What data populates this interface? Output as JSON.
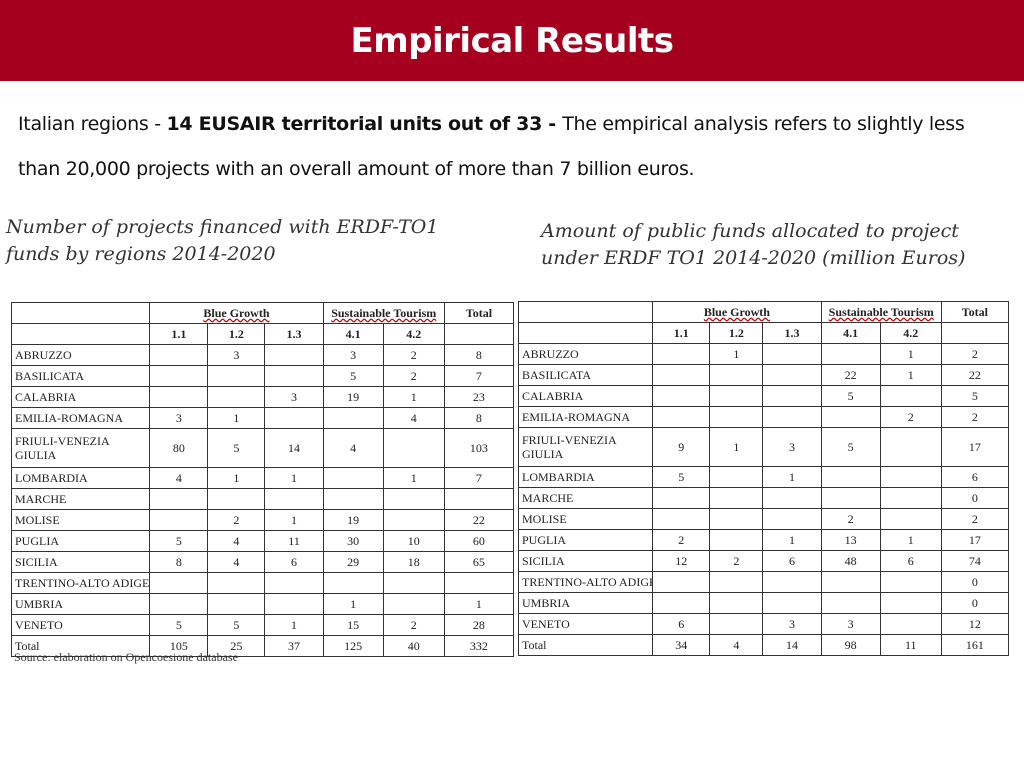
{
  "header": {
    "title": "Empirical Results"
  },
  "intro": {
    "part1": "Italian regions - ",
    "bold": "14 EUSAIR territorial units out of 33 - ",
    "part2": "The empirical analysis refers to slightly less than 20,000 projects with an overall amount of more than 7 billion euros."
  },
  "left_caption": "Number of projects financed with ERDF-TO1 funds by regions 2014-2020",
  "right_caption": "Amount of public funds allocated to project under ERDF TO1 2014-2020 (million Euros)",
  "source": "Source: elaboration on Opencoesione database",
  "table_left": {
    "group_headers": {
      "blue_growth": "Blue Growth",
      "sustainable_tourism": "Sustainable Tourism",
      "total": "Total"
    },
    "sub_headers": [
      "1.1",
      "1.2",
      "1.3",
      "4.1",
      "4.2"
    ],
    "rows": [
      {
        "region": "ABRUZZO",
        "cells": [
          "",
          "3",
          "",
          "3",
          "2",
          "8"
        ]
      },
      {
        "region": "BASILICATA",
        "cells": [
          "",
          "",
          "",
          "5",
          "2",
          "7"
        ]
      },
      {
        "region": "CALABRIA",
        "cells": [
          "",
          "",
          "3",
          "19",
          "1",
          "23"
        ]
      },
      {
        "region": "EMILIA-ROMAGNA",
        "cells": [
          "3",
          "1",
          "",
          "",
          "4",
          "8"
        ]
      },
      {
        "region": "FRIULI-VENEZIA GIULIA",
        "cells": [
          "80",
          "5",
          "14",
          "4",
          "",
          "103"
        ]
      },
      {
        "region": "LOMBARDIA",
        "cells": [
          "4",
          "1",
          "1",
          "",
          "1",
          "7"
        ]
      },
      {
        "region": "MARCHE",
        "cells": [
          "",
          "",
          "",
          "",
          "",
          ""
        ]
      },
      {
        "region": "MOLISE",
        "cells": [
          "",
          "2",
          "1",
          "19",
          "",
          "22"
        ]
      },
      {
        "region": "PUGLIA",
        "cells": [
          "5",
          "4",
          "11",
          "30",
          "10",
          "60"
        ]
      },
      {
        "region": "SICILIA",
        "cells": [
          "8",
          "4",
          "6",
          "29",
          "18",
          "65"
        ]
      },
      {
        "region": "TRENTINO-ALTO ADIGE",
        "cells": [
          "",
          "",
          "",
          "",
          "",
          ""
        ]
      },
      {
        "region": "UMBRIA",
        "cells": [
          "",
          "",
          "",
          "1",
          "",
          "1"
        ]
      },
      {
        "region": "VENETO",
        "cells": [
          "5",
          "5",
          "1",
          "15",
          "2",
          "28"
        ]
      },
      {
        "region": "Total",
        "cells": [
          "105",
          "25",
          "37",
          "125",
          "40",
          "332"
        ]
      }
    ]
  },
  "table_right": {
    "group_headers": {
      "blue_growth": "Blue Growth",
      "sustainable_tourism": "Sustainable Tourism",
      "total": "Total"
    },
    "sub_headers": [
      "1.1",
      "1.2",
      "1.3",
      "4.1",
      "4.2"
    ],
    "rows": [
      {
        "region": "ABRUZZO",
        "cells": [
          "",
          "1",
          "",
          "",
          "1",
          "2"
        ]
      },
      {
        "region": "BASILICATA",
        "cells": [
          "",
          "",
          "",
          "22",
          "1",
          "22"
        ]
      },
      {
        "region": "CALABRIA",
        "cells": [
          "",
          "",
          "",
          "5",
          "",
          "5"
        ]
      },
      {
        "region": "EMILIA-ROMAGNA",
        "cells": [
          "",
          "",
          "",
          "",
          "2",
          "2"
        ]
      },
      {
        "region": "FRIULI-VENEZIA GIULIA",
        "cells": [
          "9",
          "1",
          "3",
          "5",
          "",
          "17"
        ]
      },
      {
        "region": "LOMBARDIA",
        "cells": [
          "5",
          "",
          "1",
          "",
          "",
          "6"
        ]
      },
      {
        "region": "MARCHE",
        "cells": [
          "",
          "",
          "",
          "",
          "",
          "0"
        ]
      },
      {
        "region": "MOLISE",
        "cells": [
          "",
          "",
          "",
          "2",
          "",
          "2"
        ]
      },
      {
        "region": "PUGLIA",
        "cells": [
          "2",
          "",
          "1",
          "13",
          "1",
          "17"
        ]
      },
      {
        "region": "SICILIA",
        "cells": [
          "12",
          "2",
          "6",
          "48",
          "6",
          "74"
        ]
      },
      {
        "region": "TRENTINO-ALTO ADIGE",
        "cells": [
          "",
          "",
          "",
          "",
          "",
          "0"
        ]
      },
      {
        "region": "UMBRIA",
        "cells": [
          "",
          "",
          "",
          "",
          "",
          "0"
        ]
      },
      {
        "region": "VENETO",
        "cells": [
          "6",
          "",
          "3",
          "3",
          "",
          "12"
        ]
      },
      {
        "region": "Total",
        "cells": [
          "34",
          "4",
          "14",
          "98",
          "11",
          "161"
        ]
      }
    ]
  }
}
